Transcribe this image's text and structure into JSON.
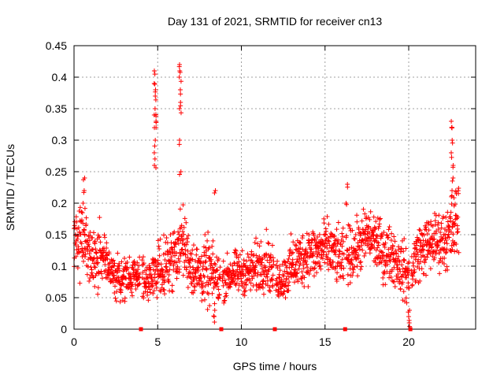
{
  "chart_data": {
    "type": "scatter",
    "title": "Day 131 of 2021, SRMTID for receiver cn13",
    "xlabel": "GPS time / hours",
    "ylabel": "SRMTID / TECUs",
    "xlim": [
      0,
      24
    ],
    "ylim": [
      0,
      0.45
    ],
    "xticks": [
      0,
      5,
      10,
      15,
      20
    ],
    "xtick_labels": [
      "0",
      "5",
      "10",
      "15",
      "20"
    ],
    "yticks": [
      0,
      0.05,
      0.1,
      0.15,
      0.2,
      0.25,
      0.3,
      0.35,
      0.4,
      0.45
    ],
    "ytick_labels": [
      "0",
      "0.05",
      "0.1",
      "0.15",
      "0.2",
      "0.25",
      "0.3",
      "0.35",
      "0.4",
      "0.45"
    ],
    "grid": true,
    "marker": "plus",
    "color": "#ff0000",
    "series_name": "SRMTID",
    "envelope": {
      "x": [
        0,
        0.5,
        1,
        1.5,
        2,
        2.5,
        3,
        3.5,
        4,
        4.5,
        5,
        5.5,
        6,
        6.5,
        7,
        7.5,
        8,
        8.5,
        9,
        9.5,
        10,
        10.5,
        11,
        11.5,
        12,
        12.5,
        13,
        13.5,
        14,
        14.5,
        15,
        15.5,
        16,
        16.5,
        17,
        17.5,
        18,
        18.5,
        19,
        19.5,
        20,
        20.5,
        21,
        21.5,
        22,
        22.5,
        23
      ],
      "center": [
        0.15,
        0.14,
        0.11,
        0.12,
        0.1,
        0.08,
        0.08,
        0.08,
        0.09,
        0.07,
        0.1,
        0.1,
        0.12,
        0.14,
        0.1,
        0.09,
        0.09,
        0.08,
        0.08,
        0.09,
        0.09,
        0.09,
        0.1,
        0.11,
        0.08,
        0.08,
        0.1,
        0.11,
        0.12,
        0.12,
        0.13,
        0.12,
        0.11,
        0.12,
        0.13,
        0.15,
        0.14,
        0.12,
        0.12,
        0.1,
        0.08,
        0.12,
        0.13,
        0.14,
        0.14,
        0.15,
        0.18
      ],
      "spread": [
        0.05,
        0.05,
        0.04,
        0.05,
        0.03,
        0.03,
        0.03,
        0.03,
        0.03,
        0.03,
        0.04,
        0.04,
        0.04,
        0.05,
        0.04,
        0.04,
        0.05,
        0.04,
        0.03,
        0.03,
        0.03,
        0.03,
        0.04,
        0.04,
        0.03,
        0.03,
        0.04,
        0.04,
        0.04,
        0.04,
        0.04,
        0.04,
        0.04,
        0.04,
        0.04,
        0.04,
        0.04,
        0.04,
        0.04,
        0.04,
        0.04,
        0.04,
        0.04,
        0.04,
        0.04,
        0.05,
        0.06
      ]
    },
    "spikes": [
      {
        "x": 4.85,
        "values": [
          0.26,
          0.28,
          0.3,
          0.32,
          0.33,
          0.34,
          0.35,
          0.37,
          0.38,
          0.39,
          0.41
        ]
      },
      {
        "x": 6.35,
        "values": [
          0.25,
          0.3,
          0.35,
          0.36,
          0.38,
          0.4,
          0.41,
          0.42
        ]
      },
      {
        "x": 22.6,
        "values": [
          0.22,
          0.24,
          0.26,
          0.28,
          0.3,
          0.32,
          0.33
        ]
      },
      {
        "x": 0.6,
        "values": [
          0.2,
          0.22,
          0.24
        ]
      },
      {
        "x": 8.4,
        "values": [
          0.02,
          0.03,
          0.22
        ]
      },
      {
        "x": 16.3,
        "values": [
          0.2,
          0.23
        ]
      },
      {
        "x": 20.0,
        "values": [
          0.01,
          0.02,
          0.03
        ]
      }
    ],
    "gap_markers": [
      4.0,
      8.8,
      12.0,
      16.2,
      20.1
    ]
  }
}
